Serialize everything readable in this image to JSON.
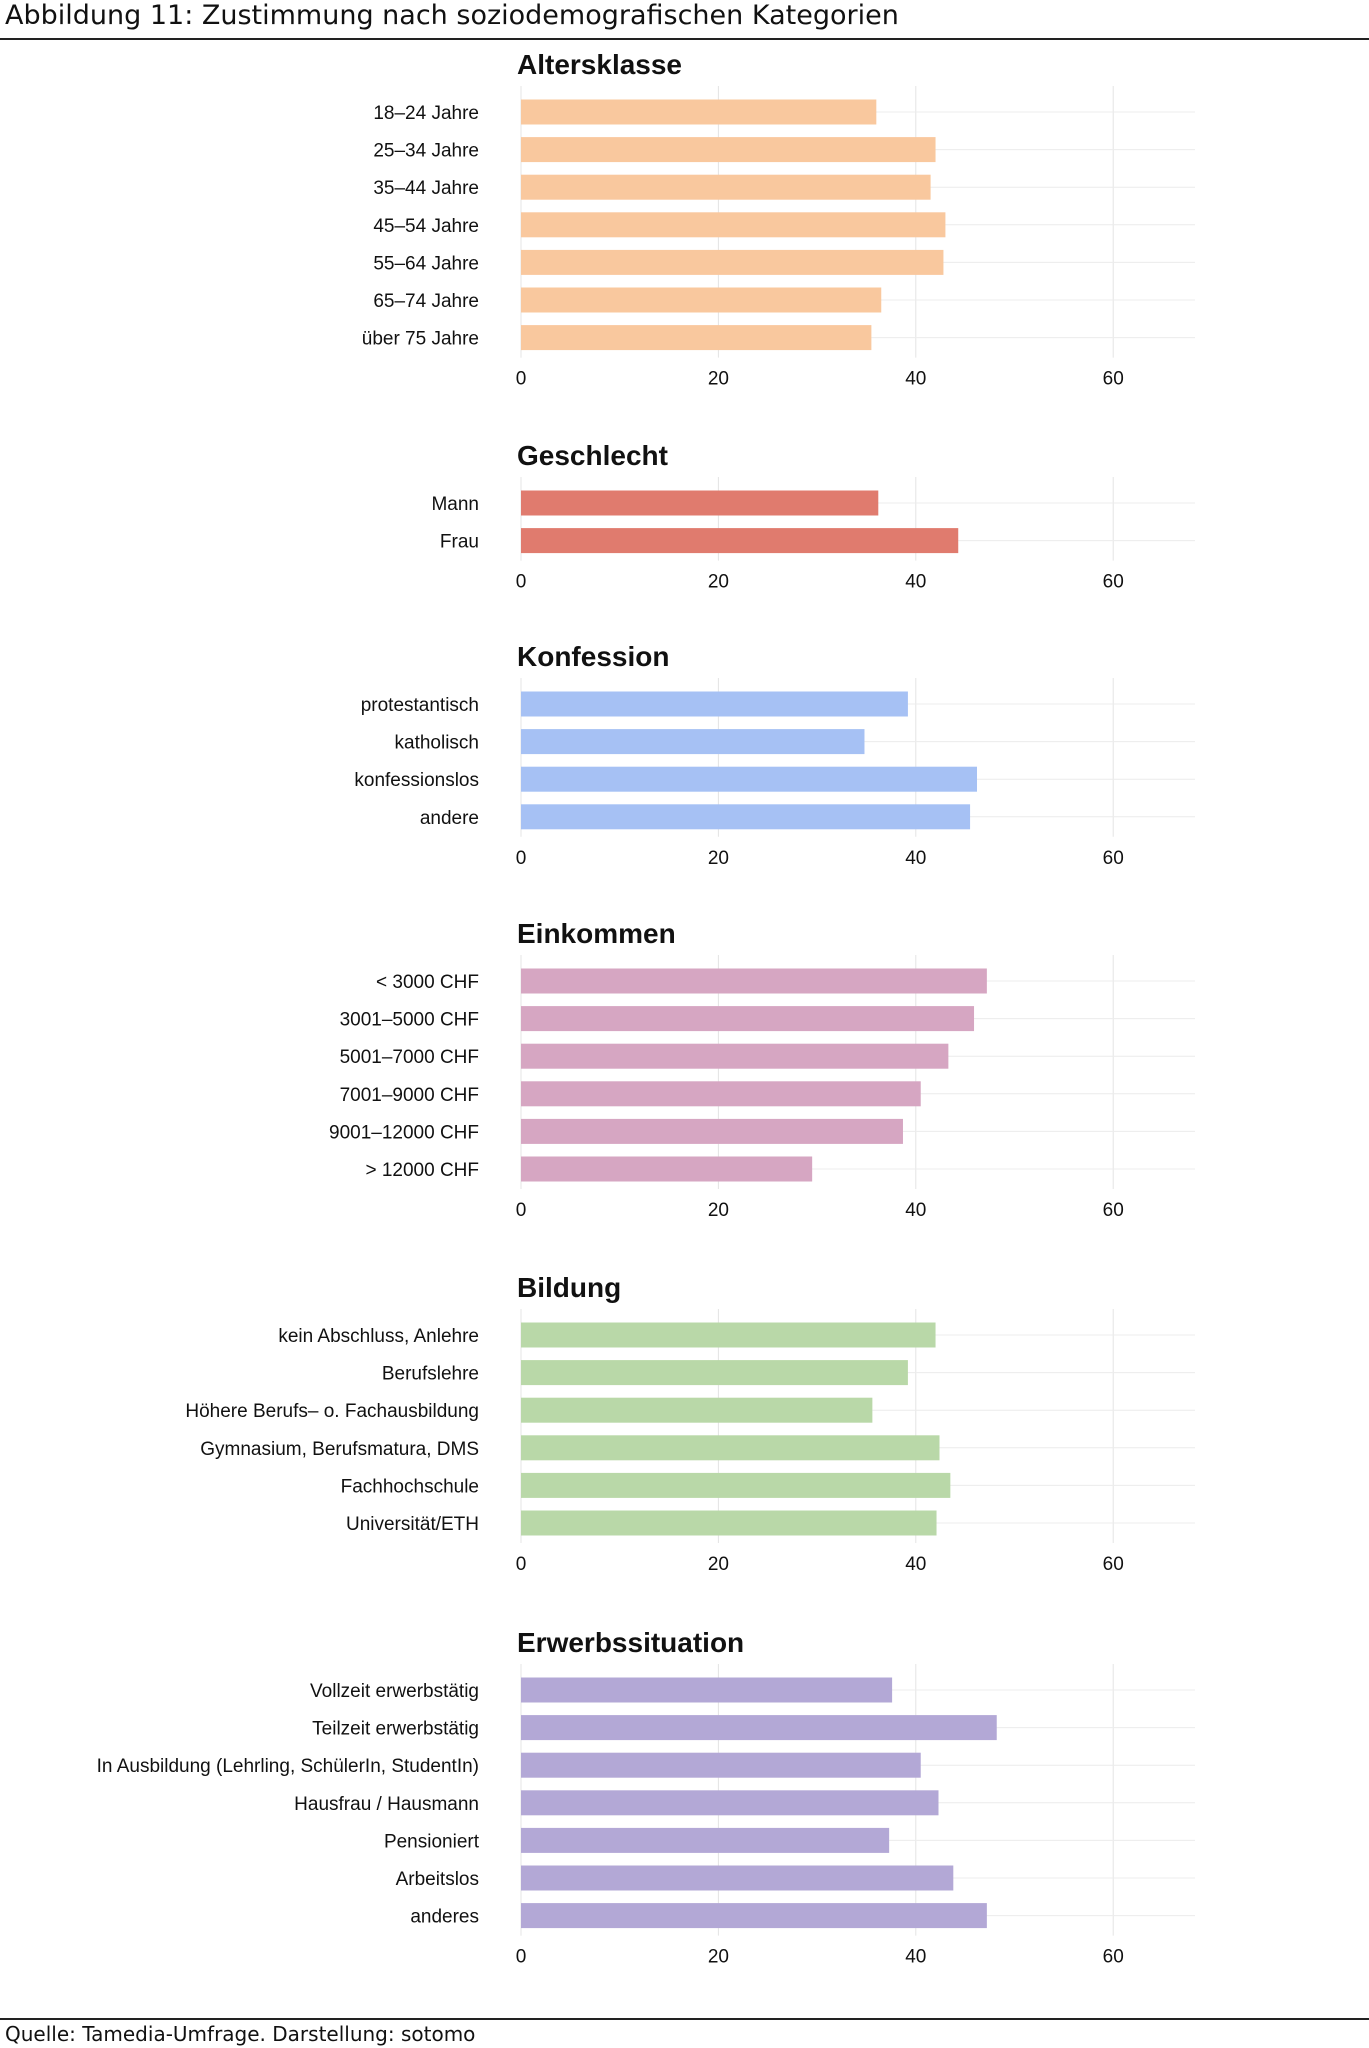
{
  "figure": {
    "title": "Abbildung 11: Zustimmung nach soziodemografischen Kategorien",
    "source": "Quelle: Tamedia-Umfrage. Darstellung: sotomo"
  },
  "chart_data": [
    {
      "type": "bar",
      "orientation": "horizontal",
      "title": "Altersklasse",
      "color": "#f9c89e",
      "categories": [
        "18–24 Jahre",
        "25–34 Jahre",
        "35–44 Jahre",
        "45–54 Jahre",
        "55–64 Jahre",
        "65–74 Jahre",
        "über 75 Jahre"
      ],
      "values": [
        36,
        42,
        41.5,
        43,
        42.8,
        36.5,
        35.5
      ],
      "xlim": [
        0,
        68
      ],
      "xticks": [
        "0",
        "20",
        "40",
        "60"
      ],
      "grid": true
    },
    {
      "type": "bar",
      "orientation": "horizontal",
      "title": "Geschlecht",
      "color": "#e07b6e",
      "categories": [
        "Mann",
        "Frau"
      ],
      "values": [
        36.2,
        44.3
      ],
      "xlim": [
        0,
        68
      ],
      "xticks": [
        "0",
        "20",
        "40",
        "60"
      ],
      "grid": true
    },
    {
      "type": "bar",
      "orientation": "horizontal",
      "title": "Konfession",
      "color": "#a6c1f4",
      "categories": [
        "protestantisch",
        "katholisch",
        "konfessionslos",
        "andere"
      ],
      "values": [
        39.2,
        34.8,
        46.2,
        45.5
      ],
      "xlim": [
        0,
        68
      ],
      "xticks": [
        "0",
        "20",
        "40",
        "60"
      ],
      "grid": true
    },
    {
      "type": "bar",
      "orientation": "horizontal",
      "title": "Einkommen",
      "color": "#d6a6c2",
      "categories": [
        "< 3000 CHF",
        "3001–5000 CHF",
        "5001–7000 CHF",
        "7001–9000 CHF",
        "9001–12000 CHF",
        "> 12000 CHF"
      ],
      "values": [
        47.2,
        45.9,
        43.3,
        40.5,
        38.7,
        29.5
      ],
      "xlim": [
        0,
        68
      ],
      "xticks": [
        "0",
        "20",
        "40",
        "60"
      ],
      "grid": true
    },
    {
      "type": "bar",
      "orientation": "horizontal",
      "title": "Bildung",
      "color": "#b9d8a8",
      "categories": [
        "kein Abschluss, Anlehre",
        "Berufslehre",
        "Höhere Berufs– o. Fachausbildung",
        "Gymnasium, Berufsmatura, DMS",
        "Fachhochschule",
        "Universität/ETH"
      ],
      "values": [
        42,
        39.2,
        35.6,
        42.4,
        43.5,
        42.1
      ],
      "xlim": [
        0,
        68
      ],
      "xticks": [
        "0",
        "20",
        "40",
        "60"
      ],
      "grid": true
    },
    {
      "type": "bar",
      "orientation": "horizontal",
      "title": "Erwerbssituation",
      "color": "#b3a8d6",
      "categories": [
        "Vollzeit erwerbstätig",
        "Teilzeit erwerbstätig",
        "In Ausbildung (Lehrling, SchülerIn, StudentIn)",
        "Hausfrau / Hausmann",
        "Pensioniert",
        "Arbeitslos",
        "anderes"
      ],
      "values": [
        37.6,
        48.2,
        40.5,
        42.3,
        37.3,
        43.8,
        47.2
      ],
      "xlim": [
        0,
        68
      ],
      "xticks": [
        "0",
        "20",
        "40",
        "60"
      ],
      "grid": true
    }
  ]
}
